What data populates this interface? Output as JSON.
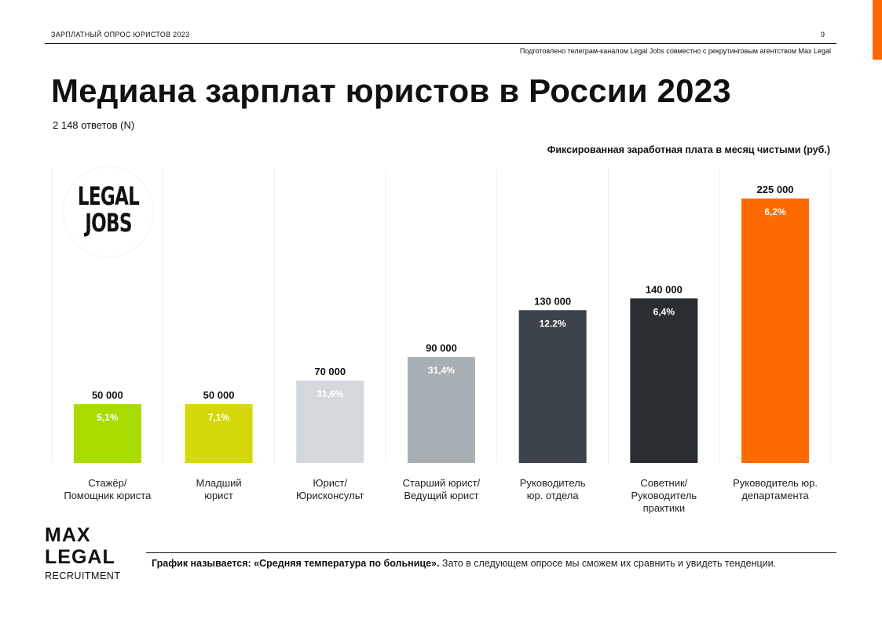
{
  "header": {
    "survey_label": "ЗАРПЛАТНЫЙ ОПРОС ЮРИСТОВ 2023",
    "page_number": "9",
    "credit": "Подготовлено телеграм-каналом Legal Jobs совместно с рекрутинговым агентством Max Legal"
  },
  "title": "Медиана зарплат юристов в России 2023",
  "sample": "2 148 ответов (N)",
  "chart_caption": "Фиксированная заработная плата в месяц чистыми (руб.)",
  "logo_legal_jobs": "LEGAL\nJOBS",
  "logo_max_legal": {
    "line1": "MAX",
    "line2": "LEGAL",
    "line3": "RECRUITMENT"
  },
  "footnote": {
    "bold": "График называется: «Средняя температура по больнице».",
    "text": " Зато в следующем опросе мы сможем их сравнить и увидеть тенденции."
  },
  "colors": {
    "accent": "#FF6A00",
    "rule": "#111111"
  },
  "chart_data": {
    "type": "bar",
    "title": "Медиана зарплат юристов в России 2023",
    "ylabel": "Фиксированная заработная плата в месяц чистыми (руб.)",
    "ylim": [
      0,
      225000
    ],
    "categories": [
      "Стажёр/\nПомощник юриста",
      "Младший\nюрист",
      "Юрист/\nЮрисконсульт",
      "Старший юрист/\nВедущий юрист",
      "Руководитель\nюр. отдела",
      "Советник/\nРуководитель\nпрактики",
      "Руководитель юр.\nдепартамента"
    ],
    "values": [
      50000,
      50000,
      70000,
      90000,
      130000,
      140000,
      225000
    ],
    "value_labels": [
      "50 000",
      "50 000",
      "70 000",
      "90 000",
      "130 000",
      "140 000",
      "225 000"
    ],
    "share_labels": [
      "5,1%",
      "7,1%",
      "31,6%",
      "31,4%",
      "12.2%",
      "6,4%",
      "6,2%"
    ],
    "colors": [
      "#A8DB00",
      "#D4D80A",
      "#D3D8DC",
      "#A7AEB4",
      "#3D434B",
      "#2A2E33",
      "#FF6A00"
    ]
  }
}
